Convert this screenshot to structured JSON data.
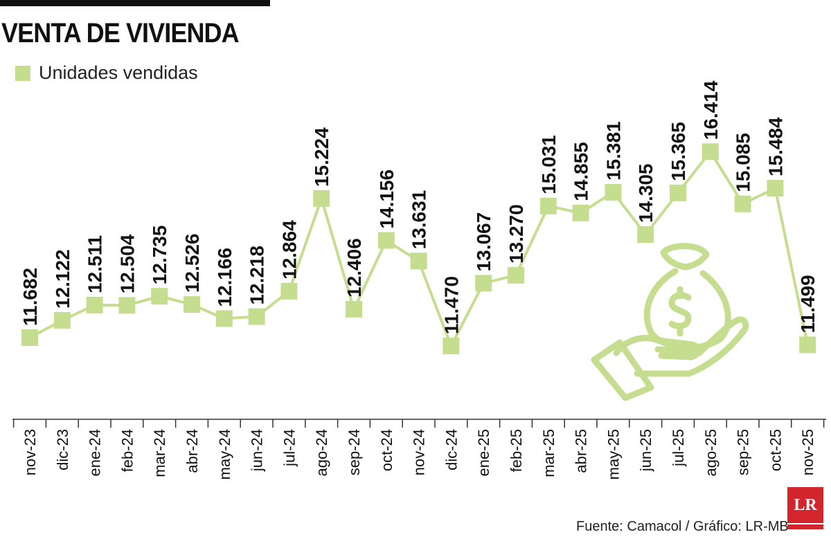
{
  "header": {
    "title": "VENTA DE VIVIENDA"
  },
  "legend": {
    "label": "Unidades vendidas"
  },
  "footer": {
    "source": "Fuente: Camacol / Gráfico: LR-MB",
    "logo_text": "LR"
  },
  "colors": {
    "series": "#c5dd8f",
    "text": "#111111",
    "brand": "#d3262c"
  },
  "icon": "money-bag-hand-icon",
  "chart_data": {
    "type": "line",
    "title": "VENTA DE VIVIENDA",
    "xlabel": "",
    "ylabel": "",
    "categories": [
      "nov-23",
      "dic-23",
      "ene-24",
      "feb-24",
      "mar-24",
      "abr-24",
      "may-24",
      "jun-24",
      "jul-24",
      "ago-24",
      "sep-24",
      "oct-24",
      "nov-24",
      "dic-24",
      "ene-25",
      "feb-25",
      "mar-25",
      "abr-25",
      "may-25",
      "jun-25",
      "jul-25",
      "ago-25",
      "sep-25",
      "oct-25",
      "nov-25"
    ],
    "series": [
      {
        "name": "Unidades vendidas",
        "values": [
          11682,
          12122,
          12511,
          12504,
          12735,
          12526,
          12166,
          12218,
          12864,
          15224,
          12406,
          14156,
          13631,
          11470,
          13067,
          13270,
          15031,
          14855,
          15381,
          14305,
          15365,
          16414,
          15085,
          15484,
          11499
        ],
        "labels": [
          "11.682",
          "12.122",
          "12.511",
          "12.504",
          "12.735",
          "12.526",
          "12.166",
          "12.218",
          "12.864",
          "15.224",
          "12.406",
          "14.156",
          "13.631",
          "11.470",
          "13.067",
          "13.270",
          "15.031",
          "14.855",
          "15.381",
          "14.305",
          "15.365",
          "16.414",
          "15.085",
          "15.484",
          "11.499"
        ]
      }
    ],
    "grid": false,
    "legend_position": "top-left"
  }
}
